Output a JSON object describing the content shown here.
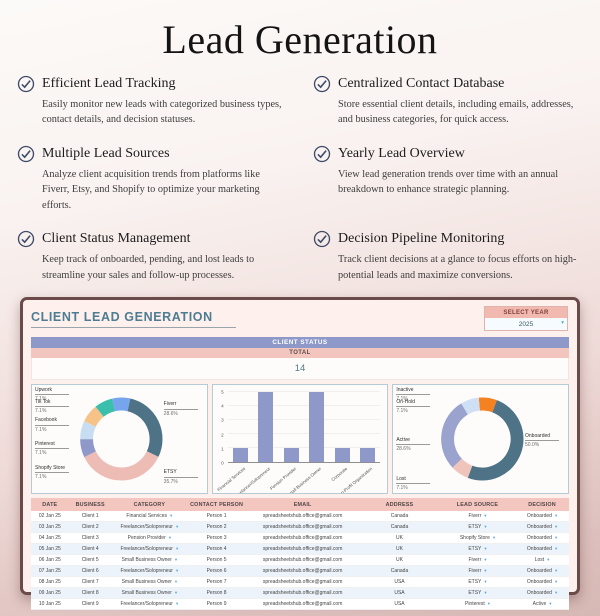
{
  "page": {
    "title": "Lead Generation"
  },
  "features": [
    {
      "title": "Efficient Lead Tracking",
      "desc": "Easily monitor new leads with categorized business types, contact details, and decision statuses."
    },
    {
      "title": "Centralized Contact Database",
      "desc": "Store essential client details, including emails, addresses, and business categories, for quick access."
    },
    {
      "title": "Multiple Lead Sources",
      "desc": "Analyze client acquisition trends from platforms like Fiverr, Etsy, and Shopify to optimize your marketing efforts."
    },
    {
      "title": "Yearly Lead Overview",
      "desc": "View lead generation trends over time with an annual breakdown to enhance strategic planning."
    },
    {
      "title": "Client Status Management",
      "desc": "Keep track of onboarded, pending, and lost leads to streamline your sales and follow-up processes."
    },
    {
      "title": "Decision Pipeline Monitoring",
      "desc": "Track client decisions at a glance to focus efforts on high-potential leads and maximize conversions."
    }
  ],
  "dashboard": {
    "title": "CLIENT LEAD GENERATION",
    "year_selector": {
      "label": "SELECT YEAR",
      "value": "2025"
    },
    "client_status": {
      "header": "CLIENT STATUS",
      "total_label": "TOTAL",
      "total_value": "14"
    }
  },
  "colors": {
    "panel_border": "#6b4b4a",
    "panel_background": "#fdf0ed",
    "status_bar": "#8e99c9",
    "total_bar": "#f2c5bf",
    "table_header": "#f4c6c0",
    "dashboard_title": "#4e7d91",
    "dropdown_arrow": "#53a6e3"
  },
  "chart_data": [
    {
      "type": "pie",
      "name": "lead-source-donut",
      "total": 14,
      "rotate": -13,
      "legend_position": "around",
      "slices": [
        {
          "label": "Upwork",
          "value": 1,
          "pct": "7.1%",
          "color": "#76a5ee",
          "label_side": "left",
          "label_top": "2%"
        },
        {
          "label": "Fiverr",
          "value": 4,
          "pct": "28.6%",
          "color": "#4e7286",
          "label_side": "right",
          "label_top": "15%"
        },
        {
          "label": "ETSY",
          "value": 5,
          "pct": "35.7%",
          "color": "#edbcb5",
          "label_side": "right",
          "label_top": "78%"
        },
        {
          "label": "Shopify Store",
          "value": 1,
          "pct": "7.1%",
          "color": "#8e99c9",
          "label_side": "left",
          "label_top": "74%"
        },
        {
          "label": "Pinterest",
          "value": 1,
          "pct": "7.1%",
          "color": "#c9ddf2",
          "label_side": "left",
          "label_top": "52%"
        },
        {
          "label": "Facebook",
          "value": 1,
          "pct": "7.1%",
          "color": "#f6c288",
          "label_side": "left",
          "label_top": "30%"
        },
        {
          "label": "Tik Tok",
          "value": 1,
          "pct": "7.1%",
          "color": "#3bbfad",
          "label_side": "left",
          "label_top": "13%"
        }
      ]
    },
    {
      "type": "bar",
      "name": "business-category-bars",
      "categories": [
        "Financial Services",
        "Freelancer/Solopreneur",
        "Pension Provider",
        "Small Business Owner",
        "Corporate",
        "Non-Profit Organization"
      ],
      "values": [
        1,
        5,
        1,
        5,
        1,
        1
      ],
      "bar_color": "#8e99c9",
      "ylim": [
        0,
        5
      ],
      "yticks": [
        0,
        1,
        2,
        3,
        4,
        5
      ],
      "grid": true
    },
    {
      "type": "pie",
      "name": "client-status-donut",
      "total": 14,
      "rotate": -5,
      "legend_position": "around",
      "slices": [
        {
          "label": "Inactive",
          "value": 1,
          "pct": "7.1%",
          "color": "#f58220",
          "label_side": "left",
          "label_top": "2%"
        },
        {
          "label": "Onboarded",
          "value": 7,
          "pct": "50.0%",
          "color": "#4e7286",
          "label_side": "right",
          "label_top": "44%"
        },
        {
          "label": "Lost",
          "value": 1,
          "pct": "7.1%",
          "color": "#efc4bb",
          "label_side": "left",
          "label_top": "84%"
        },
        {
          "label": "Active",
          "value": 4,
          "pct": "28.6%",
          "color": "#99a3cd",
          "label_side": "left",
          "label_top": "48%"
        },
        {
          "label": "On-Hold",
          "value": 1,
          "pct": "7.1%",
          "color": "#cfe0f4",
          "label_side": "left",
          "label_top": "13%"
        }
      ]
    }
  ],
  "table": {
    "headers": [
      "DATE",
      "BUSINESS",
      "CATEGORY",
      "CONTACT PERSON",
      "EMAIL",
      "ADDRESS",
      "LEAD SOURCE",
      "DECISION"
    ],
    "column_widths": [
      "7%",
      "8%",
      "14%",
      "11%",
      "21%",
      "15%",
      "14%",
      "10%"
    ],
    "dropdown_columns": [
      2,
      6,
      7
    ],
    "rows": [
      [
        "02 Jan 25",
        "Client 1",
        "Financial Services",
        "Person 1",
        "spreadsheetshub.office@gmail.com",
        "Canada",
        "Fiverr",
        "Onboarded"
      ],
      [
        "03 Jan 25",
        "Client 2",
        "Freelancer/Solopreneur",
        "Person 2",
        "spreadsheetshub.office@gmail.com",
        "Canada",
        "ETSY",
        "Onboarded"
      ],
      [
        "04 Jan 25",
        "Client 3",
        "Pension Provider",
        "Person 3",
        "spreadsheetshub.office@gmail.com",
        "UK",
        "Shopify Store",
        "Onboarded"
      ],
      [
        "05 Jan 25",
        "Client 4",
        "Freelancer/Solopreneur",
        "Person 4",
        "spreadsheetshub.office@gmail.com",
        "UK",
        "ETSY",
        "Onboarded"
      ],
      [
        "06 Jan 25",
        "Client 5",
        "Small Business Owner",
        "Person 5",
        "spreadsheetshub.office@gmail.com",
        "UK",
        "Fiverr",
        "Lost"
      ],
      [
        "07 Jan 25",
        "Client 6",
        "Freelancer/Solopreneur",
        "Person 6",
        "spreadsheetshub.office@gmail.com",
        "Canada",
        "Fiverr",
        "Onboarded"
      ],
      [
        "08 Jan 25",
        "Client 7",
        "Small Business Owner",
        "Person 7",
        "spreadsheetshub.office@gmail.com",
        "USA",
        "ETSY",
        "Onboarded"
      ],
      [
        "09 Jan 25",
        "Client 8",
        "Small Business Owner",
        "Person 8",
        "spreadsheetshub.office@gmail.com",
        "USA",
        "ETSY",
        "Onboarded"
      ],
      [
        "10 Jan 25",
        "Client 9",
        "Freelancer/Solopreneur",
        "Person 9",
        "spreadsheetshub.office@gmail.com",
        "USA",
        "Pinterest",
        "Active"
      ]
    ]
  }
}
